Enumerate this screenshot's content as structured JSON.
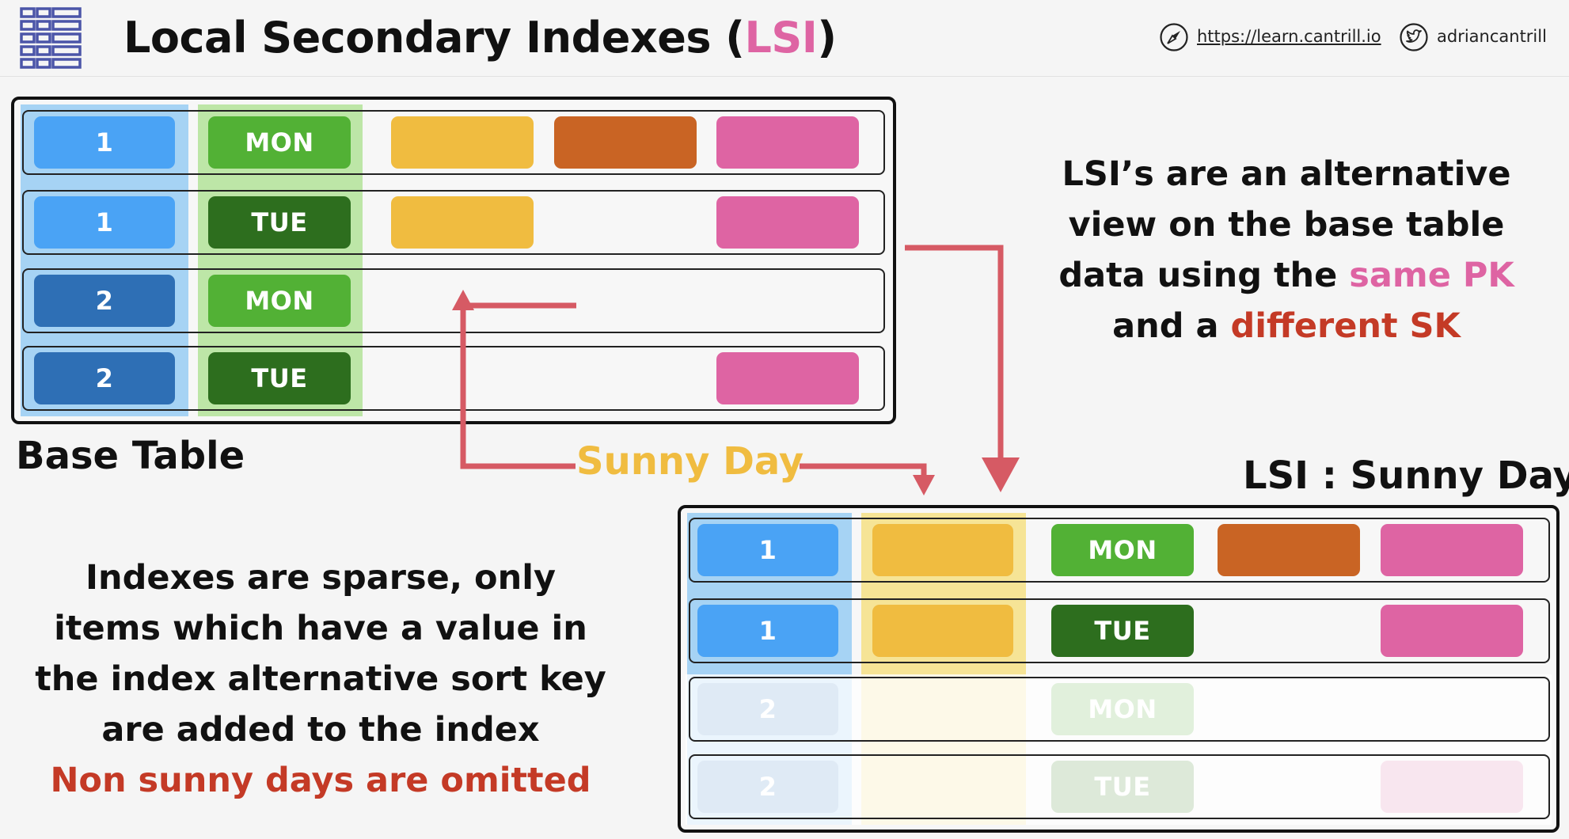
{
  "header": {
    "title_prefix": "Local Secondary Indexes (",
    "title_highlight": "LSI",
    "title_suffix": ")",
    "website": "https://learn.cantrill.io",
    "twitter": "adriancantrill",
    "logo_icon": "table-grid-icon",
    "compass_icon": "compass-icon",
    "bird_icon": "twitter-bird-icon"
  },
  "base_table": {
    "caption": "Base Table",
    "rows": [
      {
        "pk": "1",
        "sk": "MON"
      },
      {
        "pk": "1",
        "sk": "TUE"
      },
      {
        "pk": "2",
        "sk": "MON"
      },
      {
        "pk": "2",
        "sk": "TUE"
      }
    ]
  },
  "lsi_table": {
    "caption": "LSI : Sunny Day",
    "rows": [
      {
        "pk": "1",
        "day": "MON"
      },
      {
        "pk": "1",
        "day": "TUE"
      },
      {
        "pk": "2",
        "day": "MON"
      },
      {
        "pk": "2",
        "day": "TUE"
      }
    ]
  },
  "connector": {
    "label": "Sunny Day"
  },
  "explanation": {
    "line1": "LSI’s are an alternative",
    "line2": "view on the base table",
    "line3_prefix": "data using the ",
    "line3_highlight": "same PK",
    "line4_prefix": "and a ",
    "line4_highlight": "different SK"
  },
  "sparse_note": {
    "line1": "Indexes are sparse, only",
    "line2": "items which have a value in",
    "line3": "the index alternative sort key",
    "line4": "are added to the index",
    "line5": "Non sunny days are omitted"
  },
  "colors": {
    "pk_light": "#4aa3f5",
    "pk_dark": "#2e6fb5",
    "mon_green": "#52b135",
    "tue_green": "#2d6e1e",
    "yellow": "#f0bc40",
    "orange": "#c96424",
    "pink": "#de64a3",
    "arrow": "#d65a64",
    "accent_red": "#c43a26"
  }
}
